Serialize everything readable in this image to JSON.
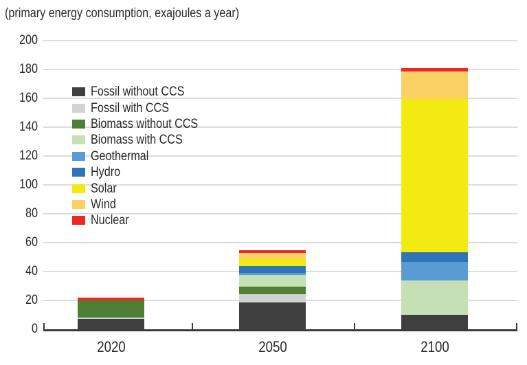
{
  "chart_data": {
    "type": "bar",
    "stacked": true,
    "title": "(primary energy consumption, exajoules a year)",
    "categories": [
      "2020",
      "2050",
      "2100"
    ],
    "series": [
      {
        "name": "Fossil without CCS",
        "color": "#3f3f3f",
        "values": [
          7,
          18.5,
          10
        ]
      },
      {
        "name": "Fossil with CCS",
        "color": "#d2d2d2",
        "values": [
          1,
          6,
          0
        ]
      },
      {
        "name": "Biomass without CCS",
        "color": "#4e8033",
        "values": [
          12,
          5,
          0
        ]
      },
      {
        "name": "Biomass with CCS",
        "color": "#c5e0b4",
        "values": [
          0,
          8,
          24
        ]
      },
      {
        "name": "Geothermal",
        "color": "#5b9bd5",
        "values": [
          0,
          1.5,
          12.5
        ]
      },
      {
        "name": "Hydro",
        "color": "#2e74b6",
        "values": [
          0,
          5,
          7
        ]
      },
      {
        "name": "Solar",
        "color": "#f3ea12",
        "values": [
          0,
          4.5,
          106
        ]
      },
      {
        "name": "Wind",
        "color": "#fbd166",
        "values": [
          0,
          4.5,
          19
        ]
      },
      {
        "name": "Nuclear",
        "color": "#ee2724",
        "values": [
          2,
          2,
          2.5
        ]
      }
    ],
    "totals": [
      22,
      55,
      181
    ],
    "ylim": [
      0,
      200
    ],
    "ytick_step": 20,
    "ytick_labels": [
      "0",
      "20",
      "40",
      "60",
      "80",
      "100",
      "120",
      "140",
      "160",
      "180",
      "200"
    ],
    "grid": true,
    "legend_position": "upper-left-inside"
  },
  "colors": {
    "axis": "#3a3a3a",
    "gridline": "#dcdcdc",
    "text": "#282828"
  }
}
